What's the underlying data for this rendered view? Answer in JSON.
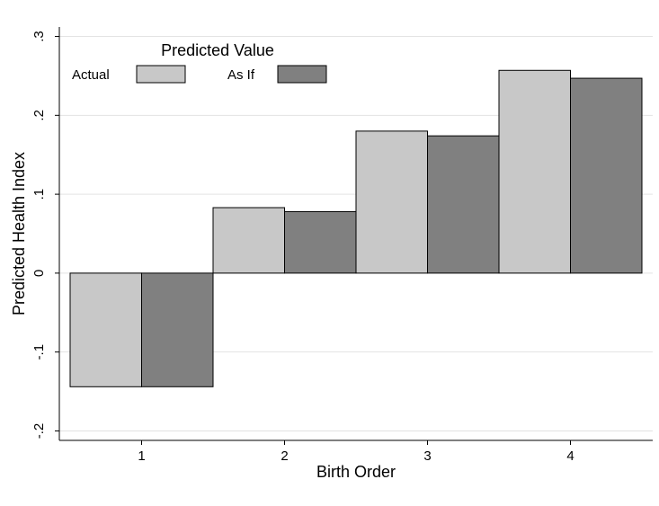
{
  "chart_data": {
    "type": "bar",
    "x_label": "Birth Order",
    "y_label": "Predicted Health Index",
    "legend_title": "Predicted Value",
    "categories": [
      "1",
      "2",
      "3",
      "4"
    ],
    "series": [
      {
        "name": "Actual",
        "color": "#c8c8c8",
        "values": [
          -0.144,
          0.083,
          0.18,
          0.257
        ]
      },
      {
        "name": "As If",
        "color": "#808080",
        "values": [
          -0.144,
          0.078,
          0.174,
          0.247
        ]
      }
    ],
    "ylim": [
      -0.212,
      0.312
    ],
    "yticks": [
      {
        "value": -0.2,
        "label": "-.2"
      },
      {
        "value": -0.1,
        "label": "-.1"
      },
      0,
      {
        "value": 0.1,
        "label": ".1"
      },
      {
        "value": 0.2,
        "label": ".2"
      },
      {
        "value": 0.3,
        "label": ".3"
      }
    ],
    "grid": true,
    "legend_position": "top-left"
  }
}
